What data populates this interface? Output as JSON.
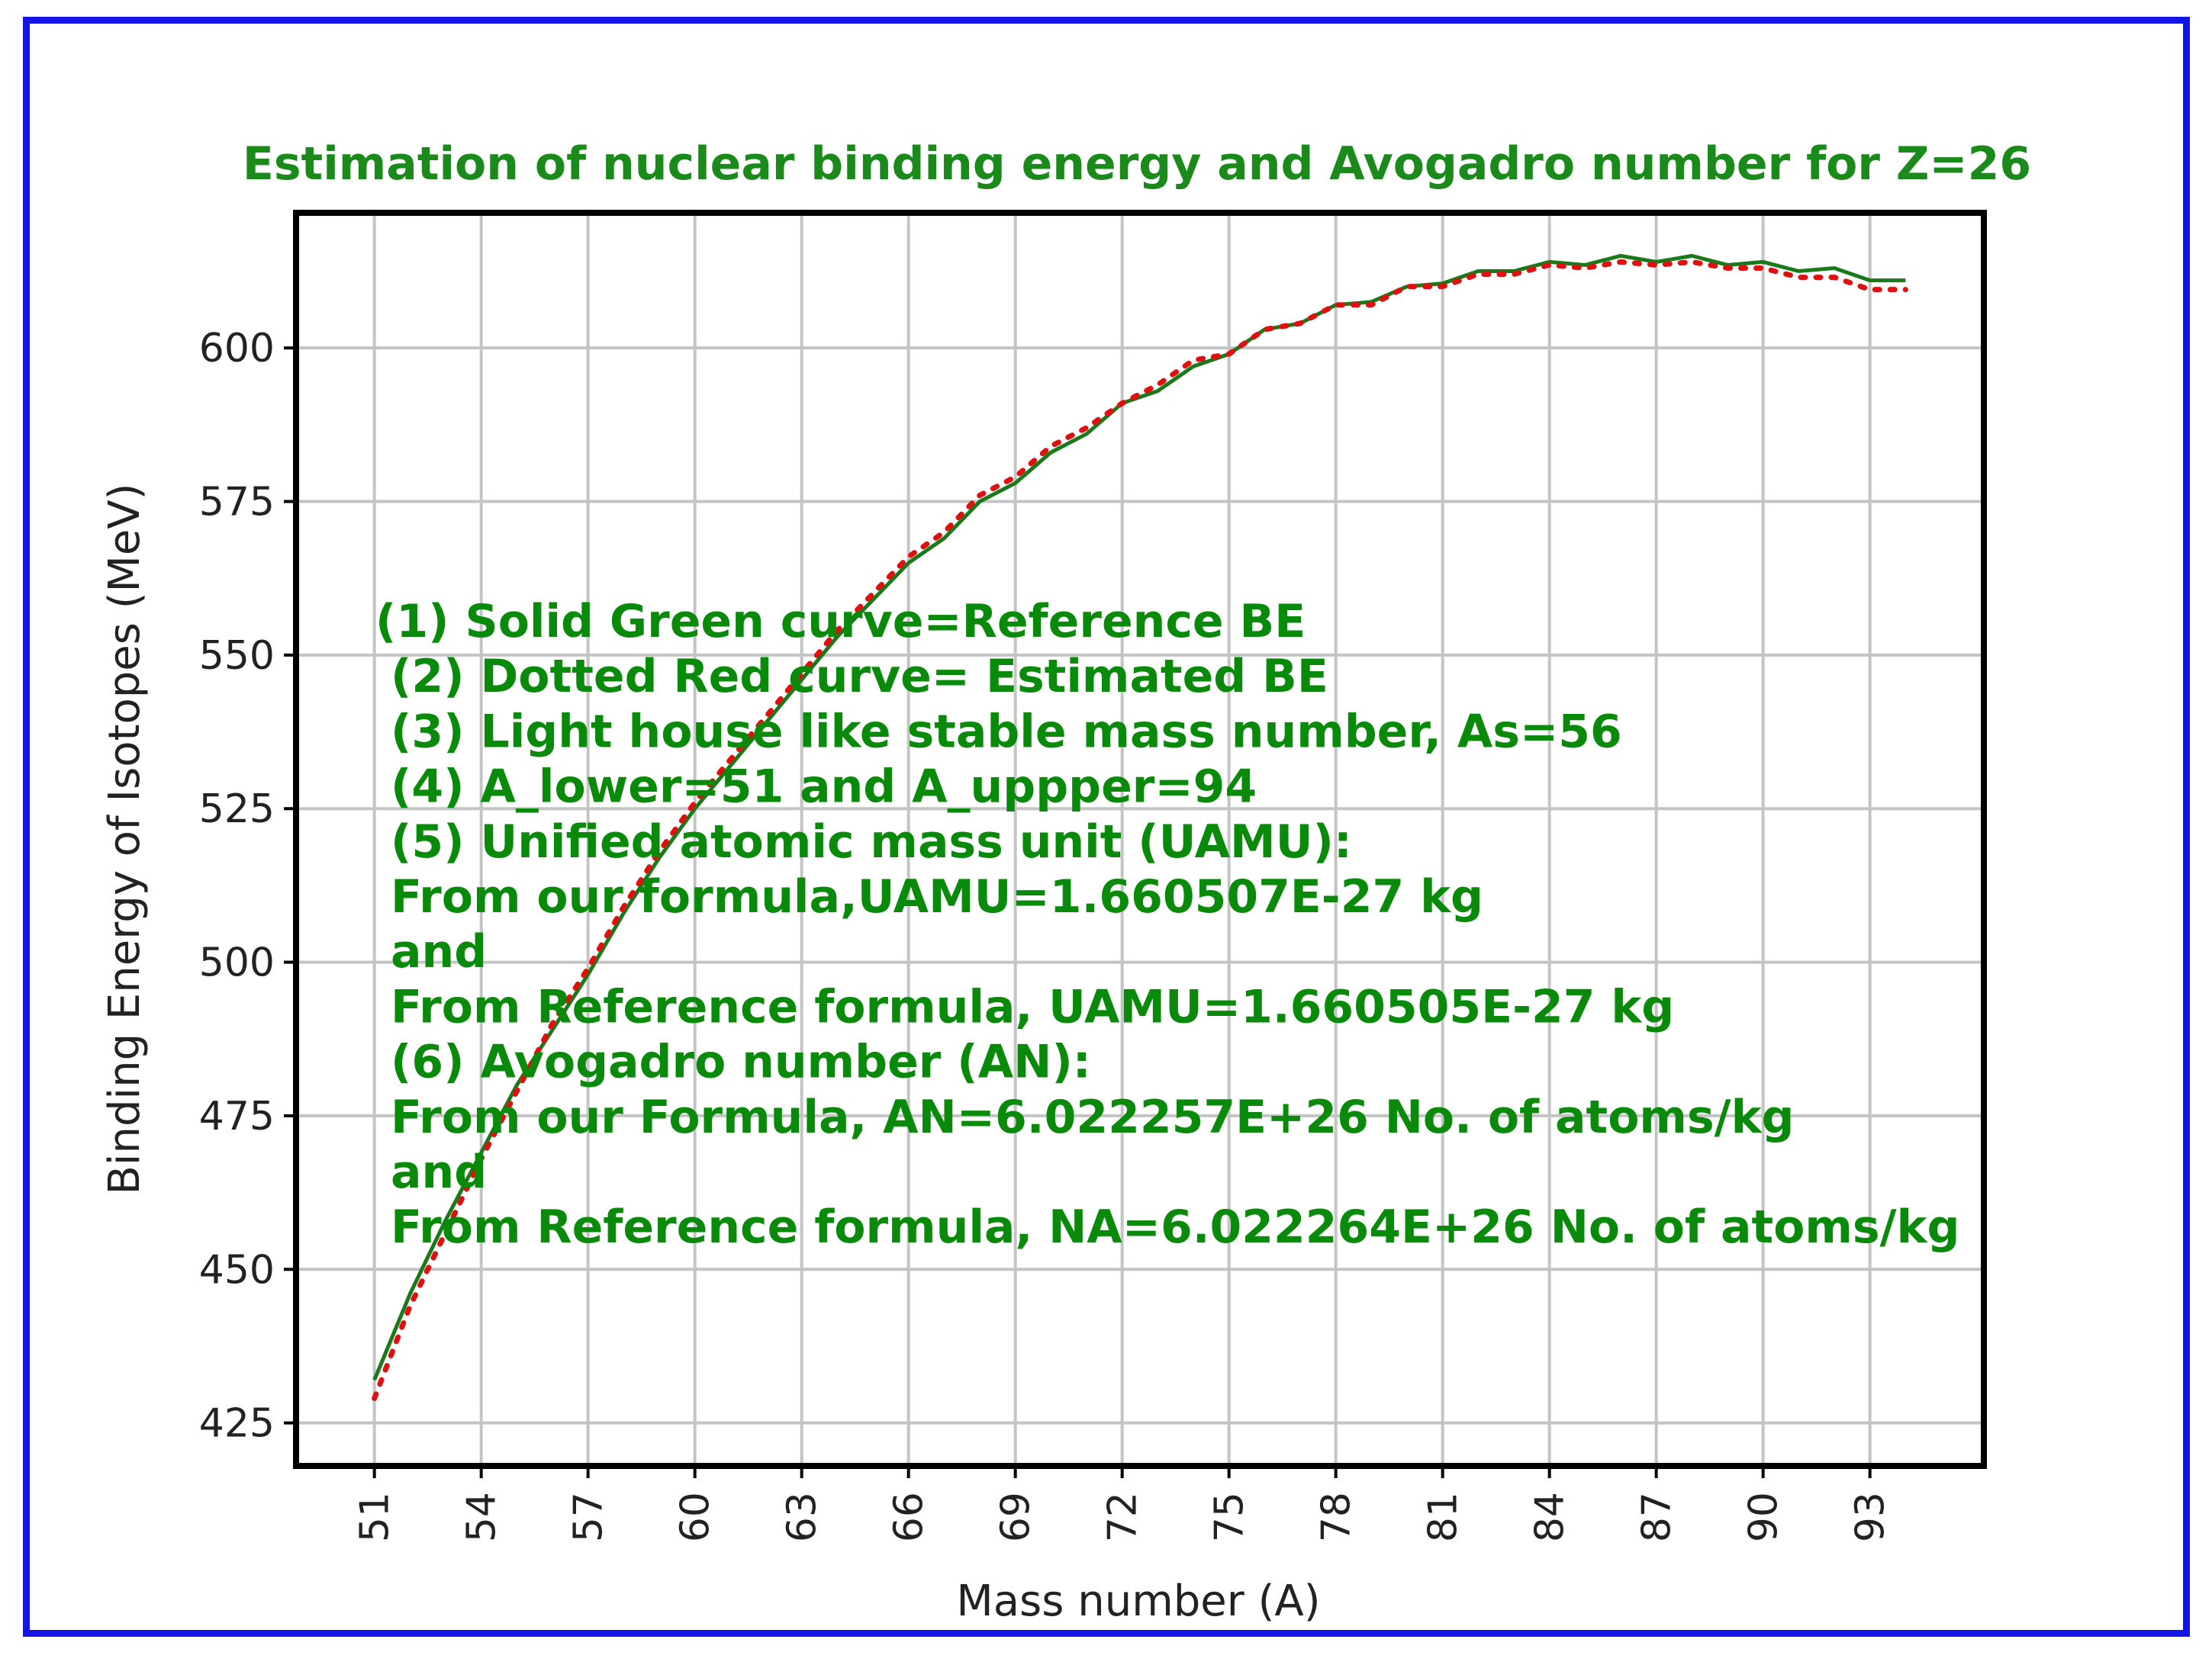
{
  "chart_data": {
    "type": "line",
    "title": "Estimation of nuclear binding energy and Avogadro number for Z=26",
    "xlabel": "Mass number (A)",
    "ylabel": "Binding Energy of Isotopes (MeV)",
    "xlim": [
      48.8,
      96.2
    ],
    "ylim": [
      418,
      622
    ],
    "xticks": [
      51,
      54,
      57,
      60,
      63,
      66,
      69,
      72,
      75,
      78,
      81,
      84,
      87,
      90,
      93
    ],
    "yticks": [
      425,
      450,
      475,
      500,
      525,
      550,
      575,
      600
    ],
    "grid": true,
    "x": [
      51,
      52,
      53,
      54,
      55,
      56,
      57,
      58,
      59,
      60,
      61,
      62,
      63,
      64,
      65,
      66,
      67,
      68,
      69,
      70,
      71,
      72,
      73,
      74,
      75,
      76,
      77,
      78,
      79,
      80,
      81,
      82,
      83,
      84,
      85,
      86,
      87,
      88,
      89,
      90,
      91,
      92,
      93,
      94
    ],
    "series": [
      {
        "style": "solid",
        "color": "#1a7a1a",
        "values": [
          432,
          446,
          458,
          469,
          480,
          489,
          498,
          508,
          517,
          525,
          532,
          539,
          546,
          553,
          559,
          565,
          569,
          575,
          578,
          583,
          586,
          591,
          593,
          597,
          599,
          603,
          604,
          607,
          607.5,
          610,
          610.5,
          612.5,
          612.5,
          614,
          613.5,
          615,
          614,
          615,
          613.5,
          614,
          612.5,
          613,
          611,
          611
        ]
      },
      {
        "style": "dotted",
        "color": "#e01010",
        "values": [
          429,
          444,
          456,
          468,
          479,
          490,
          499,
          509,
          518,
          526,
          533,
          540,
          547,
          554,
          560,
          566,
          570,
          576,
          579,
          584,
          587,
          591,
          594,
          598,
          599,
          603,
          604,
          607,
          607,
          610,
          610,
          612,
          612,
          613.5,
          613,
          614,
          613.5,
          614,
          613,
          613,
          611.5,
          611.5,
          609.5,
          609.5
        ]
      }
    ]
  },
  "annotation_lines": [
    "(1) Solid Green curve=Reference BE",
    " (2) Dotted Red curve= Estimated BE",
    " (3) Light house like stable mass number, As=56",
    " (4) A_lower=51 and  A_uppper=94",
    " (5) Unified atomic mass unit (UAMU):",
    " From our formula,UAMU=1.660507E-27 kg",
    " and",
    " From Reference formula, UAMU=1.660505E-27 kg",
    " (6) Avogadro number (AN):",
    " From our Formula, AN=6.022257E+26 No. of atoms/kg",
    " and",
    " From Reference formula, NA=6.022264E+26 No. of atoms/kg"
  ]
}
